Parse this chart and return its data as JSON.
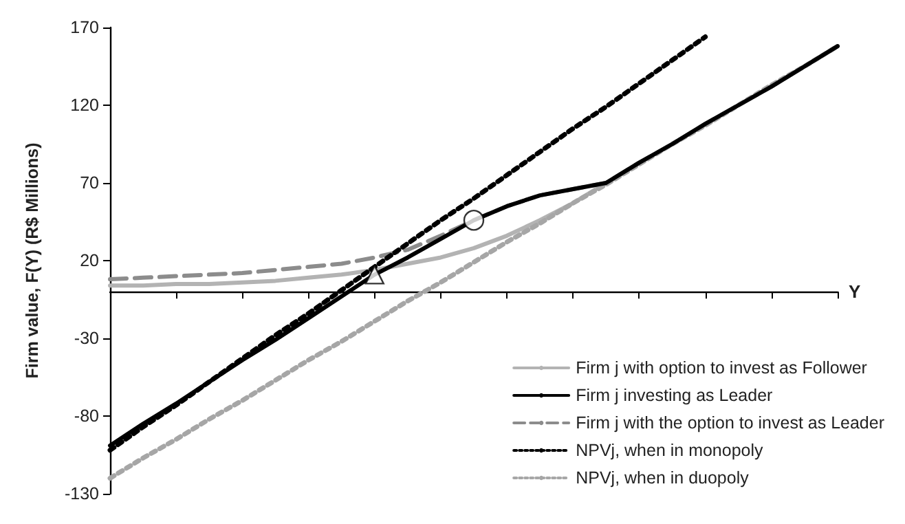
{
  "chart_data": {
    "type": "line",
    "xlabel": "Y",
    "ylabel": "Firm value, F(Y) (R$ Millions)",
    "categories": [
      null,
      null,
      null,
      null,
      null,
      null,
      null,
      null,
      null,
      null,
      null,
      null,
      null,
      null,
      null,
      null,
      null,
      null,
      null,
      null,
      null,
      null,
      null
    ],
    "ylim": [
      -130,
      170
    ],
    "yticks": [
      -130,
      -80,
      -30,
      20,
      70,
      120,
      170
    ],
    "tick_labels": "y",
    "grid": false,
    "legend": "bottom right",
    "series": [
      {
        "name": "Firm j with option to invest as Follower",
        "color": "#b3b3b3",
        "line_style": "solid",
        "values": [
          4,
          4,
          5,
          5,
          6,
          7,
          9,
          11,
          14,
          18,
          22,
          28,
          36,
          46,
          57,
          70,
          83,
          95,
          108,
          120,
          132,
          145,
          158
        ]
      },
      {
        "name": "Firm j investing as Leader",
        "color": "#000000",
        "line_style": "solid",
        "values": [
          -99,
          -85,
          -72,
          -58,
          -44,
          -31,
          -17,
          -3,
          11,
          22,
          34,
          46,
          55,
          62,
          66,
          70,
          83,
          95,
          108,
          120,
          132,
          145,
          158
        ]
      },
      {
        "name": "Firm j with the option to invest as Leader",
        "color": "#8c8c8c",
        "line_style": "dashed",
        "values": [
          8,
          9,
          10,
          11,
          12,
          14,
          16,
          18,
          22,
          27,
          36,
          46,
          55,
          62,
          66,
          70,
          83,
          95,
          108,
          120,
          132,
          145,
          158
        ]
      },
      {
        "name": "NPVj, when in monopoly",
        "color": "#000000",
        "line_style": "dotted",
        "values": [
          -102,
          -87,
          -73,
          -58,
          -43,
          -28,
          -14,
          1,
          16,
          31,
          46,
          60,
          75,
          90,
          105,
          119,
          134,
          149,
          164,
          null,
          null,
          null,
          null
        ]
      },
      {
        "name": "NPVj, when in duopoly",
        "color": "#a6a6a6",
        "line_style": "dotted",
        "values": [
          -120,
          -107,
          -95,
          -82,
          -70,
          -57,
          -44,
          -32,
          -19,
          -6,
          6,
          19,
          32,
          44,
          57,
          69,
          82,
          95,
          107,
          120,
          133,
          145,
          158
        ]
      },
      {
        "type": "scatter",
        "marker": "triangle",
        "color": "#ffffff",
        "values": [
          null,
          null,
          null,
          null,
          null,
          null,
          null,
          null,
          11,
          null,
          null,
          null,
          null,
          null,
          null,
          null,
          null,
          null,
          null,
          null,
          null,
          null,
          null
        ]
      },
      {
        "type": "scatter",
        "marker": "circle",
        "color": "#ffffff",
        "values": [
          null,
          null,
          null,
          null,
          null,
          null,
          null,
          null,
          null,
          null,
          null,
          46,
          null,
          null,
          null,
          null,
          null,
          null,
          null,
          null,
          null,
          null,
          null
        ]
      }
    ]
  }
}
